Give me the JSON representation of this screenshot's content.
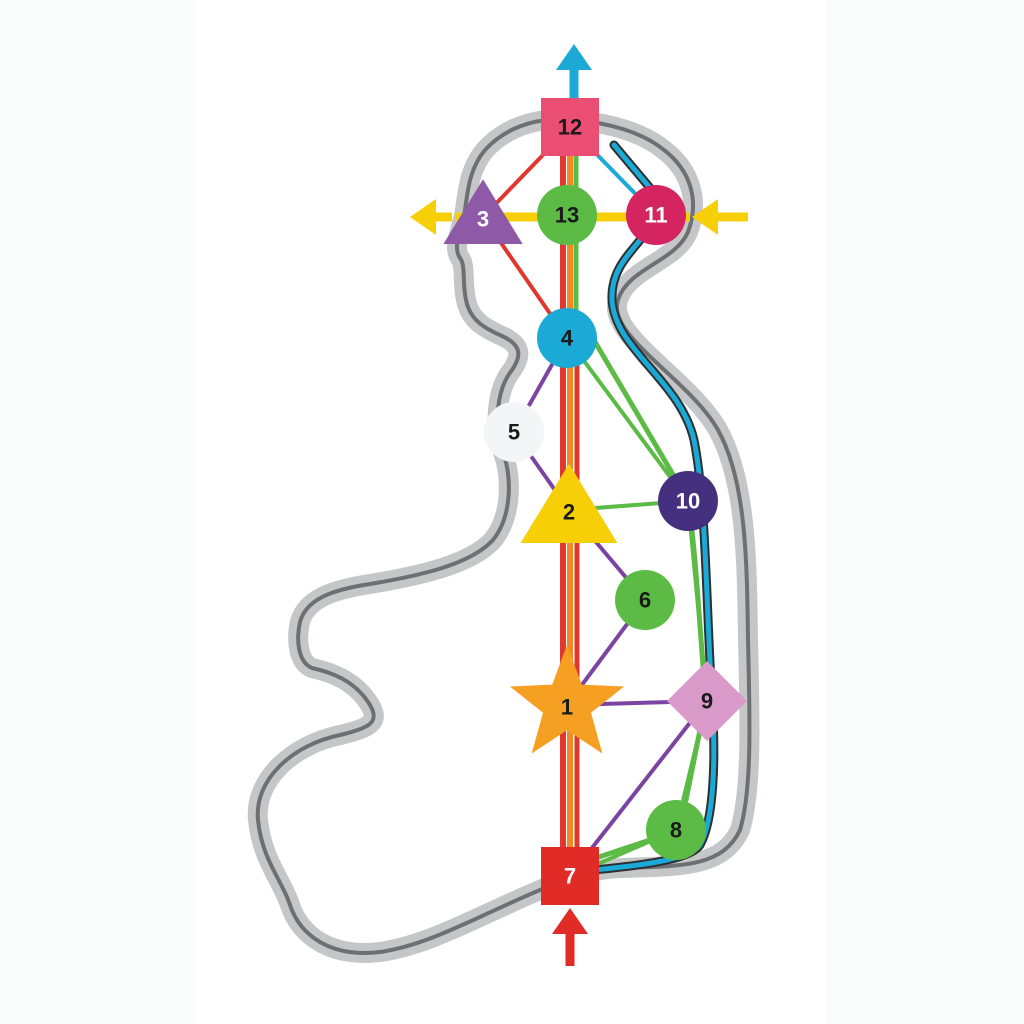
{
  "diagram": {
    "nodes": [
      {
        "id": "1",
        "label": "1",
        "shape": "star",
        "color": "#f5a023",
        "text_color": "#1a1a1a"
      },
      {
        "id": "2",
        "label": "2",
        "shape": "triangle",
        "color": "#f7cf07",
        "text_color": "#1a1a1a"
      },
      {
        "id": "3",
        "label": "3",
        "shape": "triangle",
        "color": "#8e5aa8",
        "text_color": "#ffffff"
      },
      {
        "id": "4",
        "label": "4",
        "shape": "circle",
        "color": "#1ba9d6",
        "text_color": "#1a1a1a"
      },
      {
        "id": "5",
        "label": "5",
        "shape": "circle",
        "color": "#f4f5f7",
        "text_color": "#1a1a1a"
      },
      {
        "id": "6",
        "label": "6",
        "shape": "circle",
        "color": "#5bbb45",
        "text_color": "#1a1a1a"
      },
      {
        "id": "7",
        "label": "7",
        "shape": "square",
        "color": "#e02b27",
        "text_color": "#ffffff"
      },
      {
        "id": "8",
        "label": "8",
        "shape": "circle",
        "color": "#5bbb45",
        "text_color": "#1a1a1a"
      },
      {
        "id": "9",
        "label": "9",
        "shape": "diamond",
        "color": "#d99ac9",
        "text_color": "#1a1a1a"
      },
      {
        "id": "10",
        "label": "10",
        "shape": "circle",
        "color": "#45307f",
        "text_color": "#ffffff"
      },
      {
        "id": "11",
        "label": "11",
        "shape": "circle",
        "color": "#d42561",
        "text_color": "#ffffff"
      },
      {
        "id": "12",
        "label": "12",
        "shape": "square",
        "color": "#ea4f73",
        "text_color": "#1a1a1a"
      },
      {
        "id": "13",
        "label": "13",
        "shape": "circle",
        "color": "#5bbb45",
        "text_color": "#1a1a1a"
      }
    ],
    "edges": [
      {
        "from": "12",
        "to": "3",
        "color": "#e0372f"
      },
      {
        "from": "3",
        "to": "4",
        "color": "#e0372f"
      },
      {
        "from": "12",
        "to": "11",
        "color": "#1ba9d6"
      },
      {
        "from": "4",
        "to": "10",
        "color": "#5bbb45"
      },
      {
        "from": "4",
        "to": "5",
        "color": "#7a44a0"
      },
      {
        "from": "5",
        "to": "2",
        "color": "#7a44a0"
      },
      {
        "from": "2",
        "to": "6",
        "color": "#7a44a0"
      },
      {
        "from": "6",
        "to": "1",
        "color": "#7a44a0"
      },
      {
        "from": "2",
        "to": "10",
        "color": "#5bbb45"
      },
      {
        "from": "1",
        "to": "9",
        "color": "#7a44a0"
      },
      {
        "from": "9",
        "to": "7",
        "color": "#7a44a0"
      },
      {
        "from": "10",
        "to": "9",
        "color": "#5bbb45"
      },
      {
        "from": "9",
        "to": "8",
        "color": "#5bbb45"
      },
      {
        "from": "8",
        "to": "7",
        "color": "#5bbb45"
      }
    ],
    "arrows": [
      {
        "name": "arrow-up-top",
        "color": "#1ba9d6",
        "direction": "up"
      },
      {
        "name": "arrow-left-3",
        "color": "#f7cf07",
        "direction": "left"
      },
      {
        "name": "arrow-left-11",
        "color": "#f7cf07",
        "direction": "left"
      },
      {
        "name": "arrow-up-bottom",
        "color": "#e02b27",
        "direction": "up"
      }
    ],
    "channel_colors": {
      "central_red": "#e0372f",
      "central_orange": "#f08a23",
      "central_green": "#5bbb45",
      "horizontal_yellow": "#f7cf07",
      "back_blue": "#1ba9d6",
      "back_green": "#5bbb45",
      "outline_outer": "#c4c6c8",
      "outline_inner": "#6d7073"
    }
  }
}
